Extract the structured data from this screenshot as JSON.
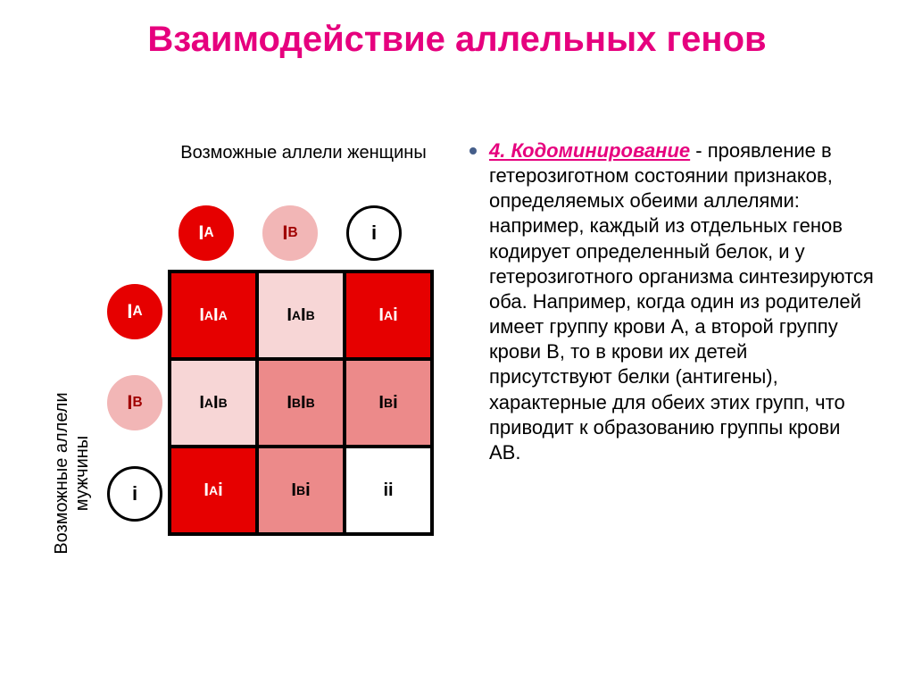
{
  "slide": {
    "title": "Взаимодействие аллельных генов",
    "left": {
      "top_label": "Возможные аллели женщины",
      "side_label": "Возможные аллели мужчины",
      "col_alleles": [
        {
          "base": "I",
          "sup": "A",
          "bg": "#e60000",
          "text": "#ffffff",
          "border": "#e60000"
        },
        {
          "base": "I",
          "sup": "B",
          "bg": "#f2b6b6",
          "text": "#a00000",
          "border": "#f2b6b6"
        },
        {
          "base": "i",
          "sup": "",
          "bg": "#ffffff",
          "text": "#000000",
          "border": "#000000"
        }
      ],
      "row_alleles": [
        {
          "base": "I",
          "sup": "A",
          "bg": "#e60000",
          "text": "#ffffff",
          "border": "#e60000"
        },
        {
          "base": "I",
          "sup": "B",
          "bg": "#f2b6b6",
          "text": "#a00000",
          "border": "#f2b6b6"
        },
        {
          "base": "i",
          "sup": "",
          "bg": "#ffffff",
          "text": "#000000",
          "border": "#000000"
        }
      ],
      "cells": [
        [
          {
            "p1b": "I",
            "p1s": "A",
            "p2b": "I",
            "p2s": "A",
            "bg": "#e60000",
            "text": "#ffffff"
          },
          {
            "p1b": "I",
            "p1s": "A",
            "p2b": "I",
            "p2s": "B",
            "bg": "#f7d6d6",
            "text": "#000000"
          },
          {
            "p1b": "I",
            "p1s": "A",
            "p2b": "i",
            "p2s": "",
            "bg": "#e60000",
            "text": "#ffffff"
          }
        ],
        [
          {
            "p1b": "I",
            "p1s": "A",
            "p2b": "I",
            "p2s": "B",
            "bg": "#f7d6d6",
            "text": "#000000"
          },
          {
            "p1b": "I",
            "p1s": "B",
            "p2b": "I",
            "p2s": "B",
            "bg": "#ec8a8a",
            "text": "#000000"
          },
          {
            "p1b": "I",
            "p1s": "B",
            "p2b": "i",
            "p2s": "",
            "bg": "#ec8a8a",
            "text": "#000000"
          }
        ],
        [
          {
            "p1b": "I",
            "p1s": "A",
            "p2b": "i",
            "p2s": "",
            "bg": "#e60000",
            "text": "#ffffff"
          },
          {
            "p1b": "I",
            "p1s": "B",
            "p2b": "i",
            "p2s": "",
            "bg": "#ec8a8a",
            "text": "#000000"
          },
          {
            "p1b": "i",
            "p1s": "",
            "p2b": "i",
            "p2s": "",
            "bg": "#ffffff",
            "text": "#000000"
          }
        ]
      ],
      "grid_border_color": "#000000",
      "cell_gap": 4
    },
    "right": {
      "term": "4. Кодоминирование",
      "body": " - проявление в гетерозиготном состоянии признаков, определяемых обеими аллелями: например, каждый из отдельных генов кодирует определенный белок, и у гетерозиготного организма синтезируются оба. Например, когда один из родителей имеет группу крови А, а второй группу крови В, то в крови их детей присутствуют белки (антигены), характерные для обеих этих групп, что приводит к образованию группы крови АВ."
    }
  },
  "colors": {
    "title": "#e6007e",
    "bullet": "#455e8a"
  }
}
